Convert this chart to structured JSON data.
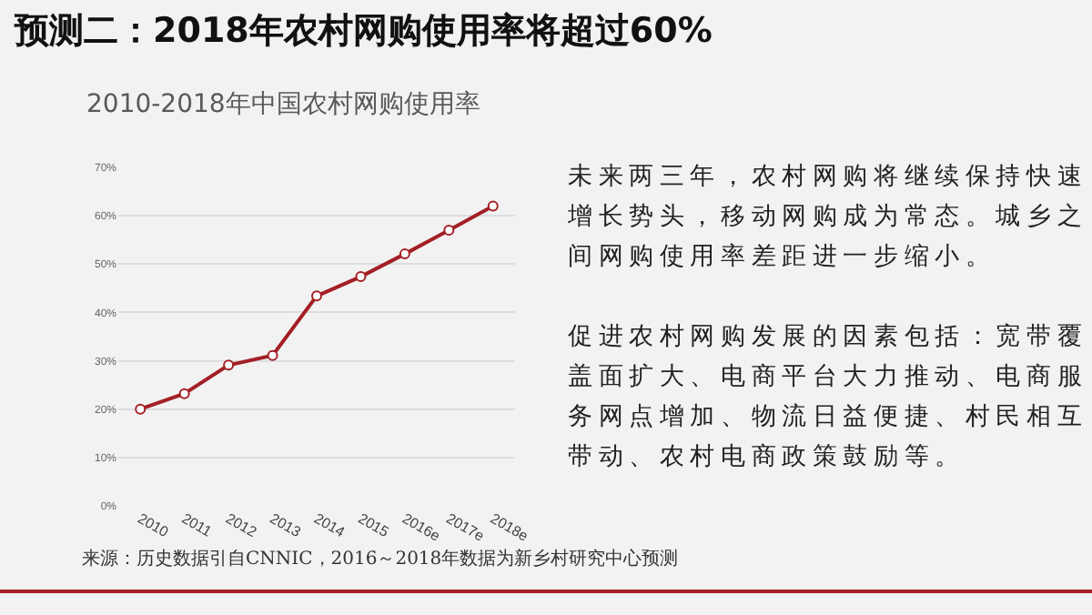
{
  "chart_data": {
    "type": "line",
    "title": "预测二：2018年农村网购使用率将超过60%",
    "subtitle": "2010-2018年中国农村网购使用率",
    "categories": [
      "2010",
      "2011",
      "2012",
      "2013",
      "2014",
      "2015",
      "2016e",
      "2017e",
      "2018e"
    ],
    "series": [
      {
        "color": "#a31f24",
        "values": [
          20.0,
          23.2,
          29.1,
          31.1,
          43.4,
          47.4,
          52.1,
          57.0,
          62.0
        ]
      }
    ],
    "ylim": [
      0,
      70
    ],
    "yticks": [
      {
        "value": 0,
        "label": "0%"
      },
      {
        "value": 10,
        "label": "10%"
      },
      {
        "value": 20,
        "label": "20%"
      },
      {
        "value": 30,
        "label": "30%"
      },
      {
        "value": 40,
        "label": "40%"
      },
      {
        "value": 50,
        "label": "50%"
      },
      {
        "value": 60,
        "label": "60%"
      },
      {
        "value": 70,
        "label": "70%"
      }
    ],
    "grid": "y",
    "marker": "circle",
    "line_style": "solid",
    "annotations": [
      "未来两三年，农村网购将继续保持快速增长势头，移动网购成为常态。城乡之间网购使用率差距进一步缩小。",
      "促进农村网购发展的因素包括：宽带覆盖面扩大、电商平台大力推动、电商服务网点增加、物流日益便捷、村民相互带动、农村电商政策鼓励等。",
      "来源：历史数据引自CNNIC，2016～2018年数据为新乡村研究中心预测"
    ]
  }
}
